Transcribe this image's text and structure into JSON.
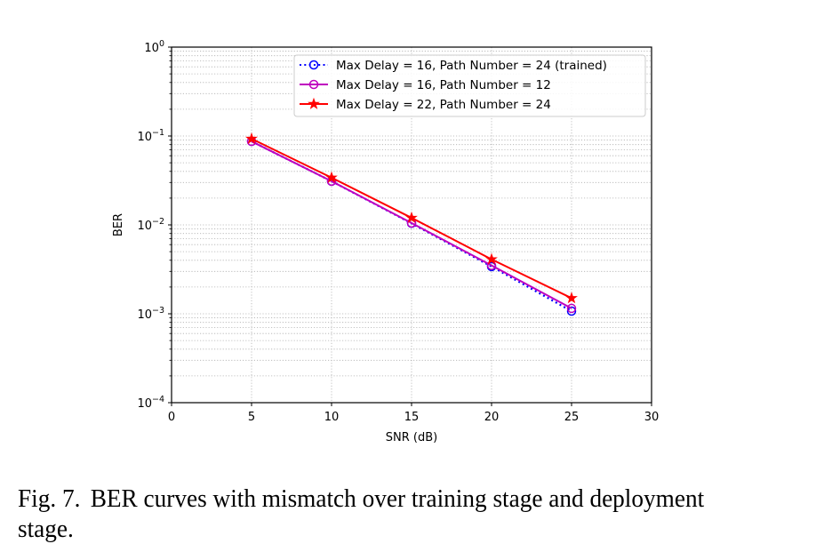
{
  "chart_data": {
    "type": "line",
    "title": "",
    "xlabel": "SNR (dB)",
    "ylabel": "BER",
    "xscale": "linear",
    "yscale": "log",
    "xlim": [
      0,
      30
    ],
    "ylim": [
      0.0001,
      1
    ],
    "xticks": [
      0,
      5,
      10,
      15,
      20,
      25,
      30
    ],
    "xtick_labels": [
      "0",
      "5",
      "10",
      "15",
      "20",
      "25",
      "30"
    ],
    "yticks": [
      1,
      0.1,
      0.01,
      0.001,
      0.0001
    ],
    "ytick_labels": [
      {
        "base": "10",
        "exp": "0"
      },
      {
        "base": "10",
        "exp": "−1"
      },
      {
        "base": "10",
        "exp": "−2"
      },
      {
        "base": "10",
        "exp": "−3"
      },
      {
        "base": "10",
        "exp": "−4"
      }
    ],
    "grid": "both (major and minor, dotted)",
    "legend_position": "top-right",
    "x": [
      5,
      10,
      15,
      20,
      25
    ],
    "series": [
      {
        "name": "Max Delay = 16, Path Number = 24 (trained)",
        "color": "#0000ff",
        "linestyle": "dotted",
        "marker": "open-circle",
        "values": [
          0.087,
          0.031,
          0.0104,
          0.0034,
          0.00107
        ]
      },
      {
        "name": "Max Delay = 16, Path Number = 12",
        "color": "#bf00bf",
        "linestyle": "solid",
        "marker": "open-circle",
        "values": [
          0.087,
          0.031,
          0.0105,
          0.0035,
          0.00115
        ]
      },
      {
        "name": "Max Delay = 22, Path Number = 24",
        "color": "#ff0000",
        "linestyle": "solid",
        "marker": "star",
        "values": [
          0.093,
          0.034,
          0.012,
          0.0041,
          0.0015
        ]
      }
    ]
  },
  "caption": {
    "label": "Fig. 7.",
    "text": "BER curves with mismatch over training stage and deployment stage."
  }
}
